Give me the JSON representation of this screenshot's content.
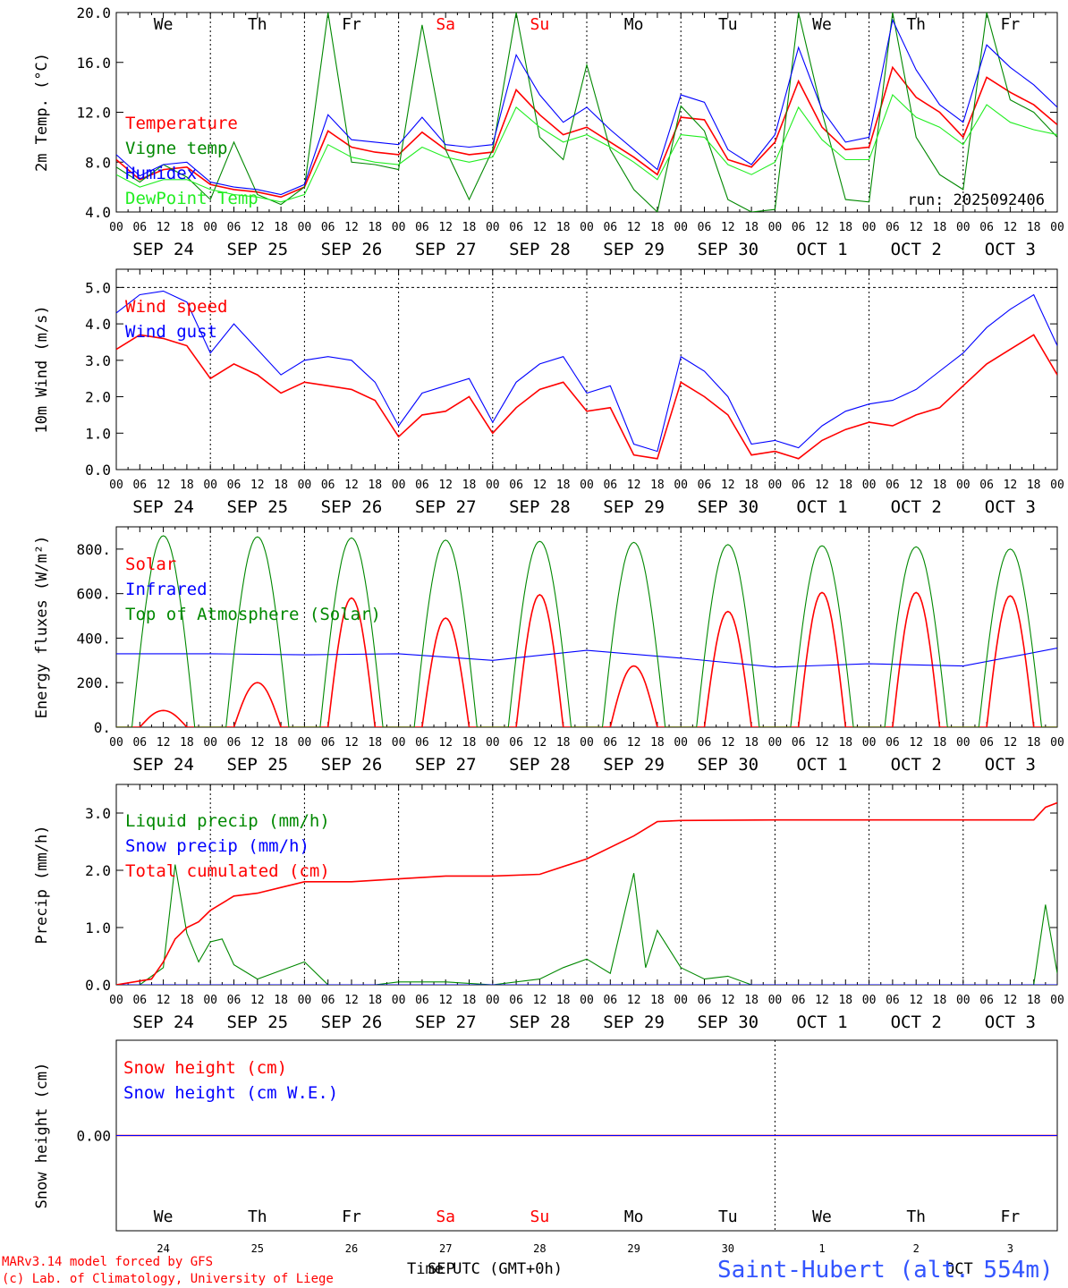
{
  "run_label": "run: 2025092406",
  "footer": {
    "model_line": "MARv3.14 model forced by GFS",
    "credit_line": "(c) Lab. of Climatology, University of Liege",
    "xaxis_label": "Time UTC (GMT+0h)",
    "month_sep": "SEP",
    "month_oct": "OCT",
    "station": "Saint-Hubert (alt. 554m)"
  },
  "hour_ticks": [
    "00",
    "06",
    "12",
    "18"
  ],
  "day_labels": [
    "SEP 24",
    "SEP 25",
    "SEP 26",
    "SEP 27",
    "SEP 28",
    "SEP 29",
    "SEP 30",
    "OCT  1",
    "OCT  2",
    "OCT  3"
  ],
  "day_numbers": [
    "24",
    "25",
    "26",
    "27",
    "28",
    "29",
    "30",
    "1",
    "2",
    "3"
  ],
  "weekdays": [
    "We",
    "Th",
    "Fr",
    "Sa",
    "Su",
    "Mo",
    "Tu",
    "We",
    "Th",
    "Fr"
  ],
  "weekend_days": [
    "Sa",
    "Su"
  ],
  "colors": {
    "red": "#ff0000",
    "green": "#008800",
    "blue": "#0000ff",
    "lightgreen": "#22ee22",
    "weekend": "#ff0000",
    "station": "#3355ff"
  },
  "chart_data": [
    {
      "type": "line",
      "ylabel": "2m Temp. (°C)",
      "ylim": [
        4,
        20
      ],
      "yticks": [
        4,
        8,
        12,
        16,
        20
      ],
      "ytick_labels": [
        "4.0",
        "8.0",
        "12.0",
        "16.0",
        "20.0"
      ],
      "x_unit": "hours since Sep 24 00 UTC",
      "series": [
        {
          "name": "Temperature",
          "color": "red",
          "x": [
            0,
            6,
            12,
            18,
            24,
            30,
            36,
            42,
            48,
            54,
            60,
            66,
            72,
            78,
            84,
            90,
            96,
            102,
            108,
            114,
            120,
            126,
            132,
            138,
            144,
            150,
            156,
            162,
            168,
            174,
            180,
            186,
            192,
            198,
            204,
            210,
            216,
            222,
            228,
            234,
            240
          ],
          "values": [
            8.2,
            6.6,
            7.4,
            7.6,
            6.2,
            5.8,
            5.6,
            5.2,
            6.0,
            10.5,
            9.2,
            8.8,
            8.6,
            10.4,
            9.0,
            8.6,
            8.8,
            13.8,
            11.8,
            10.2,
            10.8,
            9.6,
            8.4,
            7.0,
            11.6,
            11.4,
            8.2,
            7.6,
            9.6,
            14.5,
            10.8,
            9.0,
            9.2,
            15.6,
            13.2,
            12.0,
            10.0,
            14.8,
            13.6,
            12.6,
            11.0
          ]
        },
        {
          "name": "Vigne temp",
          "color": "green",
          "x": [
            0,
            6,
            12,
            18,
            24,
            30,
            36,
            42,
            48,
            54,
            60,
            66,
            72,
            78,
            84,
            90,
            96,
            102,
            108,
            114,
            120,
            126,
            132,
            138,
            144,
            150,
            156,
            162,
            168,
            174,
            180,
            186,
            192,
            198,
            204,
            210,
            216,
            222,
            228,
            234,
            240
          ],
          "values": [
            7.6,
            6.4,
            7.8,
            6.8,
            5.0,
            9.6,
            5.4,
            4.6,
            6.0,
            20.0,
            8.0,
            7.8,
            7.4,
            19.0,
            9.0,
            5.0,
            9.0,
            20.0,
            10.0,
            8.2,
            15.8,
            9.0,
            5.8,
            4.0,
            12.5,
            10.5,
            5.0,
            4.0,
            4.2,
            20.0,
            12.0,
            5.0,
            4.8,
            20.0,
            10.0,
            7.0,
            5.8,
            20.0,
            13.0,
            12.0,
            10.0
          ]
        },
        {
          "name": "Humidex",
          "color": "blue",
          "x": [
            0,
            6,
            12,
            18,
            24,
            30,
            36,
            42,
            48,
            54,
            60,
            66,
            72,
            78,
            84,
            90,
            96,
            102,
            108,
            114,
            120,
            126,
            132,
            138,
            144,
            150,
            156,
            162,
            168,
            174,
            180,
            186,
            192,
            198,
            204,
            210,
            216,
            222,
            228,
            234,
            240
          ],
          "values": [
            8.6,
            6.9,
            7.8,
            8.0,
            6.4,
            6.0,
            5.8,
            5.4,
            6.2,
            11.8,
            9.8,
            9.6,
            9.4,
            11.6,
            9.4,
            9.2,
            9.4,
            16.6,
            13.4,
            11.2,
            12.4,
            10.6,
            9.0,
            7.4,
            13.4,
            12.8,
            9.0,
            7.8,
            10.2,
            17.2,
            12.2,
            9.6,
            10.0,
            19.4,
            15.4,
            12.6,
            11.2,
            17.4,
            15.6,
            14.2,
            12.4
          ]
        },
        {
          "name": "DewPoint Temp",
          "color": "lightgreen",
          "x": [
            0,
            6,
            12,
            18,
            24,
            30,
            36,
            42,
            48,
            54,
            60,
            66,
            72,
            78,
            84,
            90,
            96,
            102,
            108,
            114,
            120,
            126,
            132,
            138,
            144,
            150,
            156,
            162,
            168,
            174,
            180,
            186,
            192,
            198,
            204,
            210,
            216,
            222,
            228,
            234,
            240
          ],
          "values": [
            7.0,
            6.0,
            6.6,
            6.6,
            5.8,
            5.4,
            5.2,
            4.8,
            5.4,
            9.4,
            8.4,
            8.0,
            7.8,
            9.2,
            8.4,
            8.0,
            8.4,
            12.4,
            10.8,
            9.6,
            10.2,
            9.2,
            8.0,
            6.6,
            10.2,
            10.0,
            7.8,
            7.0,
            8.0,
            12.4,
            9.8,
            8.2,
            8.2,
            13.4,
            11.6,
            10.8,
            9.4,
            12.6,
            11.2,
            10.6,
            10.2
          ]
        }
      ]
    },
    {
      "type": "line",
      "ylabel": "10m Wind (m/s)",
      "ylim": [
        0,
        5.5
      ],
      "yticks": [
        0,
        1,
        2,
        3,
        4,
        5
      ],
      "ytick_labels": [
        "0.0",
        "1.0",
        "2.0",
        "3.0",
        "4.0",
        "5.0"
      ],
      "x_unit": "hours since Sep 24 00 UTC",
      "series": [
        {
          "name": "Wind speed",
          "color": "red",
          "x": [
            0,
            6,
            12,
            18,
            24,
            30,
            36,
            42,
            48,
            54,
            60,
            66,
            72,
            78,
            84,
            90,
            96,
            102,
            108,
            114,
            120,
            126,
            132,
            138,
            144,
            150,
            156,
            162,
            168,
            174,
            180,
            186,
            192,
            198,
            204,
            210,
            216,
            222,
            228,
            234,
            240
          ],
          "values": [
            3.3,
            3.7,
            3.6,
            3.4,
            2.5,
            2.9,
            2.6,
            2.1,
            2.4,
            2.3,
            2.2,
            1.9,
            0.9,
            1.5,
            1.6,
            2.0,
            1.0,
            1.7,
            2.2,
            2.4,
            1.6,
            1.7,
            0.4,
            0.3,
            2.4,
            2.0,
            1.5,
            0.4,
            0.5,
            0.3,
            0.8,
            1.1,
            1.3,
            1.2,
            1.5,
            1.7,
            2.3,
            2.9,
            3.3,
            3.7,
            2.6
          ]
        },
        {
          "name": "Wind gust",
          "color": "blue",
          "x": [
            0,
            6,
            12,
            18,
            24,
            30,
            36,
            42,
            48,
            54,
            60,
            66,
            72,
            78,
            84,
            90,
            96,
            102,
            108,
            114,
            120,
            126,
            132,
            138,
            144,
            150,
            156,
            162,
            168,
            174,
            180,
            186,
            192,
            198,
            204,
            210,
            216,
            222,
            228,
            234,
            240
          ],
          "values": [
            4.3,
            4.8,
            4.9,
            4.6,
            3.2,
            4.0,
            3.3,
            2.6,
            3.0,
            3.1,
            3.0,
            2.4,
            1.2,
            2.1,
            2.3,
            2.5,
            1.3,
            2.4,
            2.9,
            3.1,
            2.1,
            2.3,
            0.7,
            0.5,
            3.1,
            2.7,
            2.0,
            0.7,
            0.8,
            0.6,
            1.2,
            1.6,
            1.8,
            1.9,
            2.2,
            2.7,
            3.2,
            3.9,
            4.4,
            4.8,
            3.4
          ]
        }
      ]
    },
    {
      "type": "line",
      "ylabel": "Energy fluxes (W/m²)",
      "ylim": [
        0,
        900
      ],
      "yticks": [
        0,
        200,
        400,
        600,
        800
      ],
      "ytick_labels": [
        "0.",
        "200.",
        "400.",
        "600.",
        "800."
      ],
      "x_unit": "hours since Sep 24 00 UTC",
      "series": [
        {
          "name": "Solar",
          "color": "red",
          "daily_peaks": [
            75,
            200,
            580,
            490,
            595,
            275,
            520,
            605,
            605,
            590
          ]
        },
        {
          "name": "Infrared",
          "color": "blue",
          "x": [
            0,
            24,
            48,
            72,
            96,
            120,
            144,
            168,
            192,
            216,
            240
          ],
          "values": [
            330,
            330,
            325,
            330,
            300,
            345,
            310,
            270,
            285,
            275,
            355
          ]
        },
        {
          "name": "Top of Atmosphere (Solar)",
          "color": "green",
          "daily_peaks": [
            860,
            855,
            850,
            840,
            835,
            830,
            820,
            815,
            810,
            800
          ]
        }
      ]
    },
    {
      "type": "line",
      "ylabel": "Precip (mm/h)",
      "ylim": [
        0,
        3.5
      ],
      "yticks": [
        0,
        1,
        2,
        3
      ],
      "ytick_labels": [
        "0.0",
        "1.0",
        "2.0",
        "3.0"
      ],
      "x_unit": "hours since Sep 24 00 UTC",
      "series": [
        {
          "name": "Liquid precip (mm/h)",
          "color": "green",
          "x": [
            0,
            6,
            9,
            12,
            15,
            18,
            21,
            24,
            27,
            30,
            36,
            42,
            48,
            54,
            60,
            66,
            72,
            84,
            96,
            108,
            114,
            120,
            126,
            132,
            135,
            138,
            144,
            150,
            156,
            162,
            168,
            192,
            216,
            234,
            237,
            240
          ],
          "values": [
            0,
            0,
            0.15,
            0.3,
            2.1,
            0.9,
            0.4,
            0.75,
            0.8,
            0.35,
            0.1,
            0.25,
            0.4,
            0,
            0,
            0,
            0.05,
            0.05,
            0,
            0.1,
            0.3,
            0.45,
            0.2,
            1.95,
            0.3,
            0.95,
            0.3,
            0.1,
            0.15,
            0,
            0,
            0,
            0,
            0,
            1.4,
            0.2
          ]
        },
        {
          "name": "Snow precip (mm/h)",
          "color": "blue",
          "x": [
            0,
            240
          ],
          "values": [
            0,
            0
          ]
        },
        {
          "name": "Total cumulated (cm)",
          "color": "red",
          "x": [
            0,
            9,
            12,
            15,
            18,
            21,
            24,
            30,
            36,
            42,
            48,
            60,
            72,
            84,
            96,
            108,
            120,
            132,
            138,
            144,
            168,
            192,
            216,
            234,
            237,
            240
          ],
          "values": [
            0,
            0.1,
            0.4,
            0.8,
            1.0,
            1.1,
            1.3,
            1.55,
            1.6,
            1.7,
            1.8,
            1.8,
            1.85,
            1.9,
            1.9,
            1.93,
            2.2,
            2.6,
            2.85,
            2.87,
            2.88,
            2.88,
            2.88,
            2.88,
            3.1,
            3.18
          ]
        }
      ]
    },
    {
      "type": "line",
      "ylabel": "Snow height (cm)",
      "yticks": [
        0
      ],
      "ytick_labels": [
        "0.00"
      ],
      "x_unit": "hours since Sep 24 00 UTC",
      "series": [
        {
          "name": "Snow height (cm)",
          "color": "red",
          "x": [
            0,
            240
          ],
          "values": [
            0,
            0
          ]
        },
        {
          "name": "Snow height (cm W.E.)",
          "color": "blue",
          "x": [
            0,
            240
          ],
          "values": [
            0,
            0
          ]
        }
      ]
    }
  ]
}
